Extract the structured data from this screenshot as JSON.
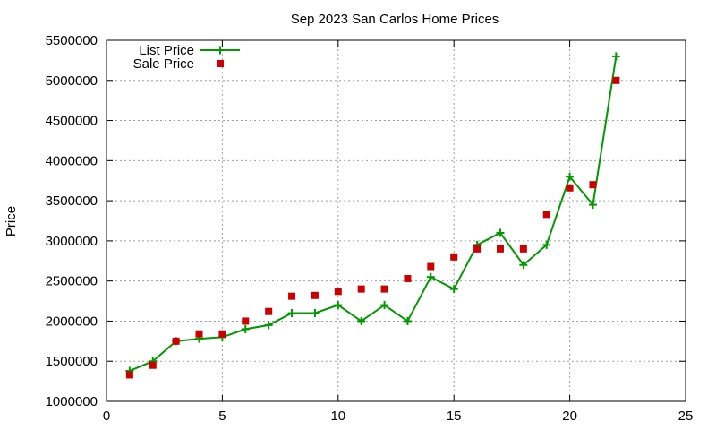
{
  "chart_data": {
    "type": "line",
    "title": "Sep 2023 San Carlos Home Prices",
    "xlabel": "",
    "ylabel": "Price",
    "xlim": [
      0,
      25
    ],
    "ylim": [
      1000000,
      5500000
    ],
    "x_ticks": [
      0,
      5,
      10,
      15,
      20,
      25
    ],
    "y_ticks": [
      1000000,
      1500000,
      2000000,
      2500000,
      3000000,
      3500000,
      4000000,
      4500000,
      5000000,
      5500000
    ],
    "grid": true,
    "legend_position": "top-left",
    "x": [
      1,
      2,
      3,
      4,
      5,
      6,
      7,
      8,
      9,
      10,
      11,
      12,
      13,
      14,
      15,
      16,
      17,
      18,
      19,
      20,
      21,
      22
    ],
    "series": [
      {
        "name": "List Price",
        "style": "line-with-plus-markers",
        "color": "#009900",
        "values": [
          1380000,
          1500000,
          1750000,
          1780000,
          1800000,
          1900000,
          1950000,
          2100000,
          2100000,
          2200000,
          2000000,
          2200000,
          2000000,
          2550000,
          2400000,
          2950000,
          3100000,
          2700000,
          2950000,
          3800000,
          3450000,
          5300000
        ]
      },
      {
        "name": "Sale Price",
        "style": "square-markers",
        "color": "#cc0000",
        "values": [
          1330000,
          1450000,
          1750000,
          1840000,
          1840000,
          2000000,
          2120000,
          2310000,
          2320000,
          2370000,
          2400000,
          2400000,
          2530000,
          2680000,
          2800000,
          2900000,
          2900000,
          2900000,
          3330000,
          3660000,
          3700000,
          5000000
        ]
      }
    ]
  }
}
